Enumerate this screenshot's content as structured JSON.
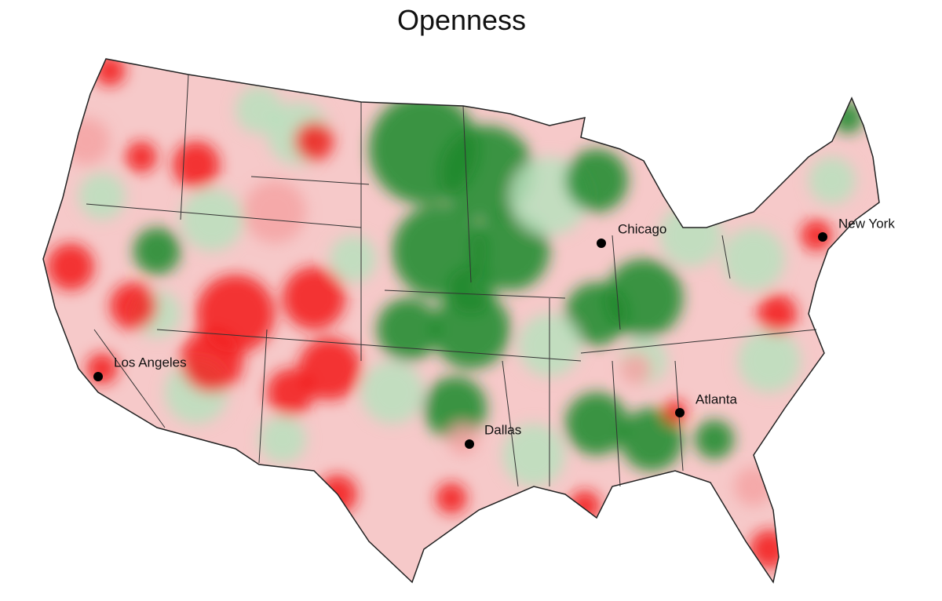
{
  "title": "Openness",
  "cities": [
    {
      "name": "Los Angeles"
    },
    {
      "name": "Chicago"
    },
    {
      "name": "New York"
    },
    {
      "name": "Dallas"
    },
    {
      "name": "Atlanta"
    }
  ]
}
